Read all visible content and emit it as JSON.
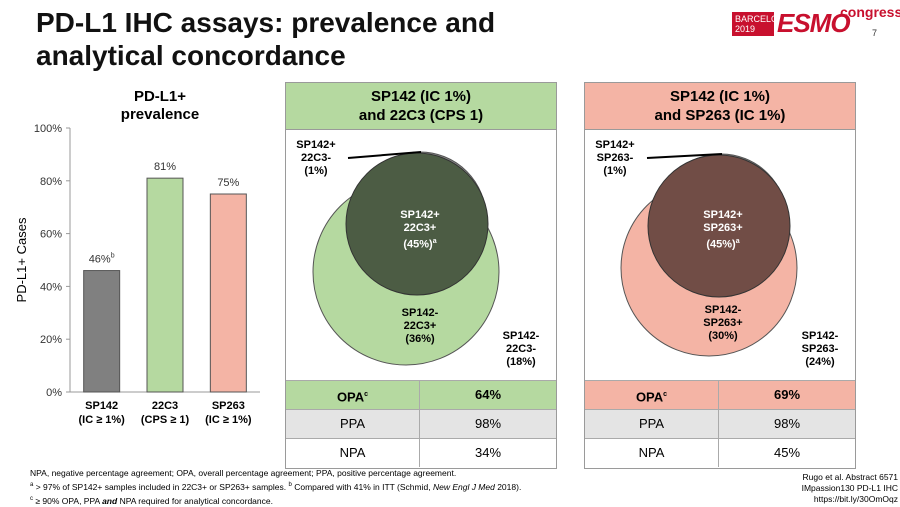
{
  "header": {
    "title": "PD-L1 IHC assays: prevalence and analytical concordance",
    "slide_number": "7"
  },
  "logo": {
    "city": "BARCELONA",
    "year": "2019",
    "brand": "ESMO",
    "suffix": "congress"
  },
  "chart_data": {
    "type": "bar",
    "title": "PD-L1+ prevalence",
    "categories": [
      "SP142",
      "22C3",
      "SP263"
    ],
    "category_sublabels": [
      "(IC ≥ 1%)",
      "(CPS ≥ 1)",
      "(IC ≥ 1%)"
    ],
    "values": [
      46,
      81,
      75
    ],
    "value_labels": [
      "46%",
      "81%",
      "75%"
    ],
    "value_label_superscripts": [
      "b",
      "",
      ""
    ],
    "ylabel": "PD-L1+ Cases",
    "xlabel": "",
    "ylim": [
      0,
      100
    ],
    "yticks": [
      0,
      20,
      40,
      60,
      80,
      100
    ],
    "ytick_labels": [
      "0%",
      "20%",
      "40%",
      "60%",
      "80%",
      "100%"
    ],
    "bar_colors": [
      "#808080",
      "#b5d9a0",
      "#f4b4a5"
    ]
  },
  "panels": [
    {
      "title_line1": "SP142 (IC 1%)",
      "title_line2": "and 22C3 (CPS 1)",
      "colors": {
        "outer": "#b5d9a0",
        "inner": "#4c5c44",
        "small": "#8f8f8f"
      },
      "labels": {
        "top_only": [
          "SP142+",
          "22C3-",
          "(1%)"
        ],
        "overlap": [
          "SP142+",
          "22C3+",
          "(45%)"
        ],
        "overlap_sup": "a",
        "second_only": [
          "SP142-",
          "22C3+",
          "(36%)"
        ],
        "neither": [
          "SP142-",
          "22C3-",
          "(18%)"
        ]
      },
      "table": {
        "opa_label": "OPA",
        "opa_sup": "c",
        "opa_value": "64%",
        "ppa_label": "PPA",
        "ppa_value": "98%",
        "npa_label": "NPA",
        "npa_value": "34%"
      }
    },
    {
      "title_line1": "SP142 (IC 1%)",
      "title_line2": "and SP263 (IC 1%)",
      "colors": {
        "outer": "#f4b4a5",
        "inner": "#714d46",
        "small": "#8f8f8f"
      },
      "labels": {
        "top_only": [
          "SP142+",
          "SP263-",
          "(1%)"
        ],
        "overlap": [
          "SP142+",
          "SP263+",
          "(45%)"
        ],
        "overlap_sup": "a",
        "second_only": [
          "SP142-",
          "SP263+",
          "(30%)"
        ],
        "neither": [
          "SP142-",
          "SP263-",
          "(24%)"
        ]
      },
      "table": {
        "opa_label": "OPA",
        "opa_sup": "c",
        "opa_value": "69%",
        "ppa_label": "PPA",
        "ppa_value": "98%",
        "npa_label": "NPA",
        "npa_value": "45%"
      }
    }
  ],
  "footnotes": {
    "line1": "NPA, negative percentage agreement; OPA, overall percentage agreement; PPA, positive percentage agreement.",
    "line2_sup_a": "a",
    "line2_a": " > 97% of SP142+ samples included in 22C3+ or SP263+ samples. ",
    "line2_sup_b": "b",
    "line2_b": " Compared with 41% in ITT (Schmid, ",
    "line2_journal": "New Engl J Med",
    "line2_end": " 2018).",
    "line3_sup_c": "c",
    "line3_a": " ≥ 90% OPA, PPA ",
    "line3_and": "and",
    "line3_b": " NPA required for analytical concordance."
  },
  "reference": {
    "line1": "Rugo et al. Abstract 6571",
    "line2": "IMpassion130 PD-L1 IHC",
    "line3": "https://bit.ly/30OmOqz"
  }
}
